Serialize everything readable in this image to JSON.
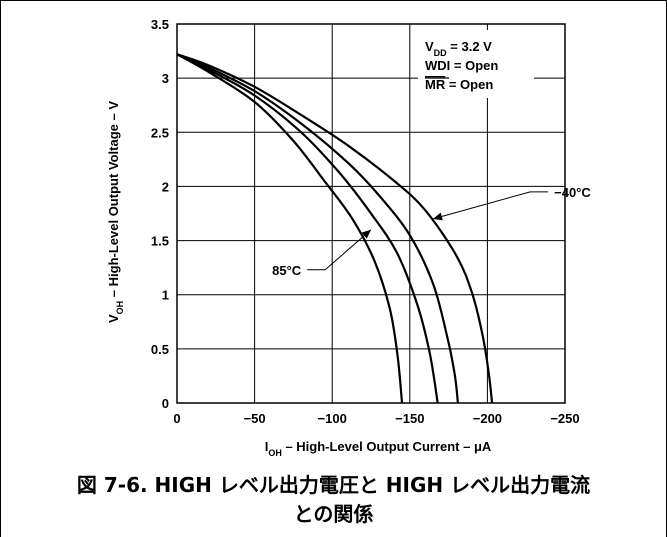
{
  "chart_data": {
    "type": "line",
    "xlabel": {
      "main": "I",
      "sub": "OH",
      "rest": " – High-Level Output Current – μA"
    },
    "ylabel": {
      "main": "V",
      "sub": "OH",
      "rest": " – High-Level Output Voltage – V"
    },
    "xlim": [
      0,
      -250
    ],
    "ylim": [
      0,
      3.5
    ],
    "x_ticks": [
      0,
      -50,
      -100,
      -150,
      -200,
      -250
    ],
    "x_tick_labels": [
      "0",
      "−50",
      "−100",
      "−150",
      "−200",
      "−250"
    ],
    "y_ticks": [
      0,
      0.5,
      1,
      1.5,
      2,
      2.5,
      3,
      3.5
    ],
    "y_tick_labels": [
      "0",
      "0.5",
      "1",
      "1.5",
      "2",
      "2.5",
      "3",
      "3.5"
    ],
    "grid": true,
    "conditions": {
      "vdd": {
        "main": "V",
        "sub": "DD",
        "rest": " = 3.2 V"
      },
      "wdi": "WDI = Open",
      "mr": {
        "overlined": "MR",
        "rest": " = Open"
      }
    },
    "series": [
      {
        "name": "−40°C",
        "labeled": true,
        "points": [
          [
            0,
            3.22
          ],
          [
            -20,
            3.12
          ],
          [
            -50,
            2.92
          ],
          [
            -80,
            2.66
          ],
          [
            -110,
            2.38
          ],
          [
            -140,
            2.05
          ],
          [
            -160,
            1.78
          ],
          [
            -180,
            1.36
          ],
          [
            -190,
            1.02
          ],
          [
            -197,
            0.62
          ],
          [
            -201,
            0.26
          ],
          [
            -203,
            0
          ]
        ]
      },
      {
        "name": "",
        "labeled": false,
        "points": [
          [
            0,
            3.22
          ],
          [
            -20,
            3.1
          ],
          [
            -50,
            2.88
          ],
          [
            -80,
            2.58
          ],
          [
            -110,
            2.22
          ],
          [
            -130,
            1.92
          ],
          [
            -150,
            1.55
          ],
          [
            -165,
            1.1
          ],
          [
            -174,
            0.62
          ],
          [
            -179,
            0.26
          ],
          [
            -181,
            0
          ]
        ]
      },
      {
        "name": "",
        "labeled": false,
        "points": [
          [
            0,
            3.22
          ],
          [
            -20,
            3.08
          ],
          [
            -50,
            2.84
          ],
          [
            -80,
            2.5
          ],
          [
            -105,
            2.12
          ],
          [
            -125,
            1.75
          ],
          [
            -142,
            1.38
          ],
          [
            -155,
            0.9
          ],
          [
            -163,
            0.45
          ],
          [
            -168,
            0
          ]
        ]
      },
      {
        "name": "85°C",
        "labeled": true,
        "points": [
          [
            0,
            3.22
          ],
          [
            -20,
            3.06
          ],
          [
            -50,
            2.78
          ],
          [
            -75,
            2.42
          ],
          [
            -95,
            2.05
          ],
          [
            -113,
            1.7
          ],
          [
            -127,
            1.32
          ],
          [
            -137,
            0.88
          ],
          [
            -142,
            0.45
          ],
          [
            -145,
            0
          ]
        ]
      }
    ],
    "annotations": [
      {
        "series": 0,
        "text": "−40°C",
        "at_point": [
          -165,
          1.7
        ],
        "text_pos": [
          -243,
          1.95
        ]
      },
      {
        "series": 3,
        "text": "85°C",
        "at_point": [
          -125,
          1.6
        ],
        "text_pos": [
          -80,
          1.23
        ]
      }
    ]
  },
  "caption": {
    "line1": "図 7-6. HIGH レベル出力電圧と HIGH レベル出力電流",
    "line2": "との関係"
  }
}
